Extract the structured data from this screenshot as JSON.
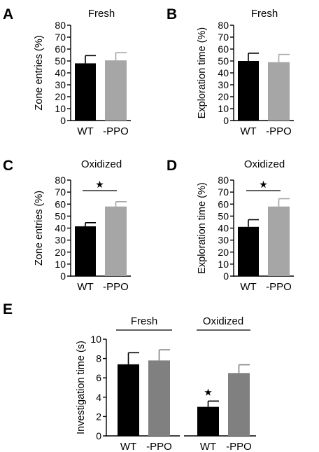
{
  "chart_data": [
    {
      "id": "A",
      "type": "bar",
      "panel_label": "A",
      "title": "Fresh",
      "ylabel": "Zone entries (%)",
      "ylim": [
        0,
        80
      ],
      "yticks": [
        "0",
        "10",
        "20",
        "30",
        "40",
        "50",
        "60",
        "70",
        "80"
      ],
      "categories": [
        "WT",
        "-PPO"
      ],
      "values": [
        48,
        50.5
      ],
      "errors": [
        6.5,
        6.5
      ],
      "colors": [
        "#000000",
        "#a6a6a6"
      ],
      "significance": ""
    },
    {
      "id": "B",
      "type": "bar",
      "panel_label": "B",
      "title": "Fresh",
      "ylabel": "Exploration time (%)",
      "ylim": [
        0,
        80
      ],
      "yticks": [
        "0",
        "10",
        "20",
        "30",
        "40",
        "50",
        "60",
        "70",
        "80"
      ],
      "categories": [
        "WT",
        "-PPO"
      ],
      "values": [
        50,
        49
      ],
      "errors": [
        6.5,
        6.5
      ],
      "colors": [
        "#000000",
        "#a6a6a6"
      ],
      "significance": ""
    },
    {
      "id": "C",
      "type": "bar",
      "panel_label": "C",
      "title": "Oxidized",
      "ylabel": "Zone entries (%)",
      "ylim": [
        0,
        80
      ],
      "yticks": [
        "0",
        "10",
        "20",
        "30",
        "40",
        "50",
        "60",
        "70",
        "80"
      ],
      "categories": [
        "WT",
        "-PPO"
      ],
      "values": [
        41.5,
        58
      ],
      "errors": [
        3,
        4
      ],
      "colors": [
        "#000000",
        "#a6a6a6"
      ],
      "significance": "★"
    },
    {
      "id": "D",
      "type": "bar",
      "panel_label": "D",
      "title": "Oxidized",
      "ylabel": "Exploration time (%)",
      "ylim": [
        0,
        80
      ],
      "yticks": [
        "0",
        "10",
        "20",
        "30",
        "40",
        "50",
        "60",
        "70",
        "80"
      ],
      "categories": [
        "WT",
        "-PPO"
      ],
      "values": [
        41,
        58
      ],
      "errors": [
        6,
        6.5
      ],
      "colors": [
        "#000000",
        "#a6a6a6"
      ],
      "significance": "★"
    },
    {
      "id": "E",
      "type": "bar",
      "panel_label": "E",
      "ylabel": "Investigation time (s)",
      "ylim": [
        0,
        10
      ],
      "yticks": [
        "0",
        "2",
        "4",
        "6",
        "8",
        "10"
      ],
      "groups": [
        {
          "title": "Fresh",
          "categories": [
            "WT",
            "-PPO"
          ],
          "values": [
            7.4,
            7.8
          ],
          "errors": [
            1.2,
            1.1
          ],
          "colors": [
            "#000000",
            "#808080"
          ],
          "markers": [
            "",
            ""
          ]
        },
        {
          "title": "Oxidized",
          "categories": [
            "WT",
            "-PPO"
          ],
          "values": [
            3.0,
            6.5
          ],
          "errors": [
            0.6,
            0.85
          ],
          "colors": [
            "#000000",
            "#808080"
          ],
          "markers": [
            "★",
            ""
          ]
        }
      ]
    }
  ]
}
